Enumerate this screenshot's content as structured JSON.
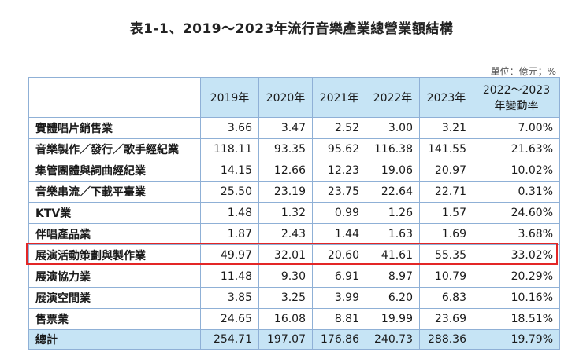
{
  "title": "表1-1、2019～2023年流行音樂產業總營業額結構",
  "unit": "單位：億元；%",
  "headers": [
    "2019年",
    "2020年",
    "2021年",
    "2022年",
    "2023年",
    "2022～2023年變動率"
  ],
  "header_last_lines": [
    "2022～2023",
    "年變動率"
  ],
  "rows": [
    {
      "name": "實體唱片銷售業",
      "values": [
        "3.66",
        "3.47",
        "2.52",
        "3.00",
        "3.21",
        "7.00%"
      ]
    },
    {
      "name": "音樂製作／發行／歌手經紀業",
      "values": [
        "118.11",
        "93.35",
        "95.62",
        "116.38",
        "141.55",
        "21.63%"
      ]
    },
    {
      "name": "集管團體與詞曲經紀業",
      "values": [
        "14.15",
        "12.66",
        "12.23",
        "19.06",
        "20.97",
        "10.02%"
      ]
    },
    {
      "name": "音樂串流／下載平臺業",
      "values": [
        "25.50",
        "23.19",
        "23.75",
        "22.64",
        "22.71",
        "0.31%"
      ]
    },
    {
      "name": "KTV業",
      "values": [
        "1.48",
        "1.32",
        "0.99",
        "1.26",
        "1.57",
        "24.60%"
      ]
    },
    {
      "name": "伴唱產品業",
      "values": [
        "1.87",
        "2.43",
        "1.44",
        "1.63",
        "1.69",
        "3.68%"
      ]
    },
    {
      "name": "展演活動策劃與製作業",
      "values": [
        "49.97",
        "32.01",
        "20.60",
        "41.61",
        "55.35",
        "33.02%"
      ]
    },
    {
      "name": "展演協力業",
      "values": [
        "11.48",
        "9.30",
        "6.91",
        "8.97",
        "10.79",
        "20.29%"
      ]
    },
    {
      "name": "展演空間業",
      "values": [
        "3.85",
        "3.25",
        "3.99",
        "6.20",
        "6.83",
        "10.16%"
      ]
    },
    {
      "name": "售票業",
      "values": [
        "24.65",
        "16.08",
        "8.81",
        "19.99",
        "23.69",
        "18.51%"
      ]
    }
  ],
  "total": {
    "name": "總計",
    "values": [
      "254.71",
      "197.07",
      "176.86",
      "240.73",
      "288.36",
      "19.79%"
    ]
  },
  "colors": {
    "header_bg": "#c6e4f5",
    "border": "#8fb0d6",
    "highlight": "#e32626"
  }
}
